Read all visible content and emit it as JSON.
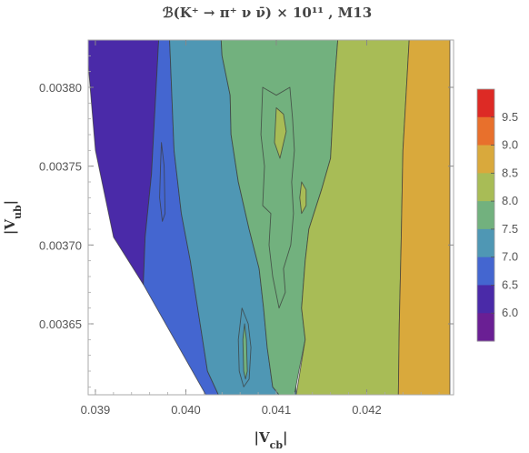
{
  "chart_data": {
    "type": "contour",
    "title": "ℬ(K⁺ → π⁺ ν ν̄) × 10¹¹ , M13",
    "xlabel": "|V_cb|",
    "ylabel": "|V_ub|",
    "xlim": [
      0.03892,
      0.04296
    ],
    "ylim": [
      0.003605,
      0.00383
    ],
    "x_ticks": [
      "0.039",
      "0.040",
      "0.041",
      "0.042"
    ],
    "y_ticks": [
      "0.00365",
      "0.00370",
      "0.00375",
      "0.00380"
    ],
    "legend": {
      "position": "right",
      "levels": [
        "6.0",
        "6.5",
        "7.0",
        "7.5",
        "8.0",
        "8.5",
        "9.0",
        "9.5"
      ],
      "colors": [
        "#6a1f94",
        "#4a2aa8",
        "#4466d0",
        "#4f97b4",
        "#72b17e",
        "#a8bc56",
        "#d9a93c",
        "#e8702c",
        "#dd2a25"
      ]
    },
    "regions": [
      {
        "level": "6.5-7.0",
        "color": "#4a2aa8",
        "polygon": [
          [
            0.03892,
            0.00383
          ],
          [
            0.03927,
            0.00383
          ],
          [
            0.0397,
            0.00383
          ],
          [
            0.03962,
            0.003745
          ],
          [
            0.03955,
            0.003705
          ],
          [
            0.03953,
            0.003675
          ],
          [
            0.0392,
            0.003705
          ],
          [
            0.039,
            0.00376
          ],
          [
            0.03892,
            0.003815
          ]
        ]
      },
      {
        "level": "7.0-7.5",
        "color": "#4466d0",
        "polygon": [
          [
            0.0397,
            0.00383
          ],
          [
            0.03982,
            0.00383
          ],
          [
            0.03987,
            0.00376
          ],
          [
            0.03995,
            0.00372
          ],
          [
            0.04005,
            0.00369
          ],
          [
            0.04024,
            0.00362
          ],
          [
            0.04036,
            0.003605
          ],
          [
            0.04022,
            0.003605
          ],
          [
            0.03953,
            0.003675
          ],
          [
            0.03955,
            0.003705
          ],
          [
            0.03962,
            0.003745
          ]
        ]
      },
      {
        "level": "7.5-8.0",
        "color": "#4f97b4",
        "polygon": [
          [
            0.03982,
            0.00383
          ],
          [
            0.04039,
            0.00383
          ],
          [
            0.0404,
            0.00382
          ],
          [
            0.04049,
            0.003795
          ],
          [
            0.0405,
            0.00377
          ],
          [
            0.04058,
            0.00374
          ],
          [
            0.0407,
            0.00371
          ],
          [
            0.04081,
            0.003685
          ],
          [
            0.04086,
            0.00366
          ],
          [
            0.0409,
            0.003635
          ],
          [
            0.04096,
            0.00361
          ],
          [
            0.04103,
            0.003605
          ],
          [
            0.0412,
            0.003605
          ],
          [
            0.04121,
            0.00362
          ],
          [
            0.04122,
            0.003605
          ],
          [
            0.04036,
            0.003605
          ],
          [
            0.04024,
            0.00362
          ],
          [
            0.04005,
            0.00369
          ],
          [
            0.03995,
            0.00372
          ],
          [
            0.03987,
            0.00376
          ]
        ]
      },
      {
        "level": "8.0-8.5",
        "color": "#72b17e",
        "polygon": [
          [
            0.04039,
            0.00383
          ],
          [
            0.04168,
            0.00383
          ],
          [
            0.04164,
            0.0038
          ],
          [
            0.0416,
            0.003755
          ],
          [
            0.0415,
            0.003735
          ],
          [
            0.04136,
            0.00371
          ],
          [
            0.04132,
            0.00369
          ],
          [
            0.04128,
            0.00366
          ],
          [
            0.04132,
            0.00364
          ],
          [
            0.04125,
            0.00362
          ],
          [
            0.0412,
            0.003605
          ],
          [
            0.04103,
            0.003605
          ],
          [
            0.04096,
            0.00361
          ],
          [
            0.0409,
            0.003635
          ],
          [
            0.04086,
            0.00366
          ],
          [
            0.04081,
            0.003685
          ],
          [
            0.0407,
            0.00371
          ],
          [
            0.04058,
            0.00374
          ],
          [
            0.0405,
            0.00377
          ],
          [
            0.04049,
            0.003795
          ],
          [
            0.0404,
            0.00382
          ]
        ]
      },
      {
        "level": "8.5-9.0",
        "color": "#a8bc56",
        "polygon": [
          [
            0.04168,
            0.00383
          ],
          [
            0.04247,
            0.00383
          ],
          [
            0.0424,
            0.00376
          ],
          [
            0.04238,
            0.0037
          ],
          [
            0.04236,
            0.00365
          ],
          [
            0.04235,
            0.003605
          ],
          [
            0.04122,
            0.003605
          ],
          [
            0.04132,
            0.00364
          ],
          [
            0.04128,
            0.00366
          ],
          [
            0.04132,
            0.00369
          ],
          [
            0.04136,
            0.00371
          ],
          [
            0.0415,
            0.003735
          ],
          [
            0.0416,
            0.003755
          ],
          [
            0.04164,
            0.0038
          ]
        ]
      },
      {
        "level": "9.0-9.5",
        "color": "#d9a93c",
        "polygon": [
          [
            0.04247,
            0.00383
          ],
          [
            0.04292,
            0.00383
          ],
          [
            0.04292,
            0.003605
          ],
          [
            0.04235,
            0.003605
          ],
          [
            0.04236,
            0.00365
          ],
          [
            0.04238,
            0.0037
          ],
          [
            0.0424,
            0.00376
          ]
        ]
      }
    ],
    "islands": [
      {
        "level": "8.0-8.5",
        "color": "#72b17e",
        "polygon": [
          [
            0.04085,
            0.0038
          ],
          [
            0.041,
            0.003795
          ],
          [
            0.04115,
            0.0038
          ],
          [
            0.04118,
            0.00378
          ],
          [
            0.0412,
            0.00376
          ],
          [
            0.04117,
            0.00374
          ],
          [
            0.04119,
            0.00372
          ],
          [
            0.04116,
            0.0037
          ],
          [
            0.04108,
            0.003685
          ],
          [
            0.0411,
            0.00367
          ],
          [
            0.04103,
            0.00366
          ],
          [
            0.04096,
            0.00368
          ],
          [
            0.04092,
            0.0037
          ],
          [
            0.04094,
            0.00372
          ],
          [
            0.04085,
            0.003725
          ],
          [
            0.04087,
            0.00375
          ],
          [
            0.04083,
            0.00377
          ]
        ]
      },
      {
        "level": "8.5-9.0",
        "color": "#a8bc56",
        "polygon": [
          [
            0.041,
            0.003787
          ],
          [
            0.04108,
            0.003783
          ],
          [
            0.04111,
            0.003772
          ],
          [
            0.04104,
            0.003755
          ],
          [
            0.04098,
            0.003765
          ]
        ]
      },
      {
        "level": "8.5-9.0",
        "color": "#a8bc56",
        "polygon": [
          [
            0.04128,
            0.00374
          ],
          [
            0.04133,
            0.003735
          ],
          [
            0.04133,
            0.003725
          ],
          [
            0.04128,
            0.00372
          ],
          [
            0.04126,
            0.00373
          ]
        ]
      },
      {
        "level": "7.5-8.0",
        "color": "#4f97b4",
        "polygon": [
          [
            0.04062,
            0.00366
          ],
          [
            0.04069,
            0.00365
          ],
          [
            0.04072,
            0.003635
          ],
          [
            0.0407,
            0.003615
          ],
          [
            0.04064,
            0.00361
          ],
          [
            0.04059,
            0.00362
          ],
          [
            0.04058,
            0.00364
          ]
        ]
      },
      {
        "level": "8.0-8.5",
        "color": "#72b17e",
        "polygon": [
          [
            0.04065,
            0.00365
          ],
          [
            0.04067,
            0.00364
          ],
          [
            0.04068,
            0.00362
          ],
          [
            0.04066,
            0.003615
          ],
          [
            0.04064,
            0.00362
          ],
          [
            0.04063,
            0.00364
          ]
        ]
      },
      {
        "level": "7.0-7.5",
        "color": "#4466d0",
        "polygon": [
          [
            0.03973,
            0.003765
          ],
          [
            0.03976,
            0.00375
          ],
          [
            0.03977,
            0.00372
          ],
          [
            0.03974,
            0.003715
          ],
          [
            0.03971,
            0.00373
          ],
          [
            0.03972,
            0.00375
          ]
        ]
      }
    ]
  }
}
